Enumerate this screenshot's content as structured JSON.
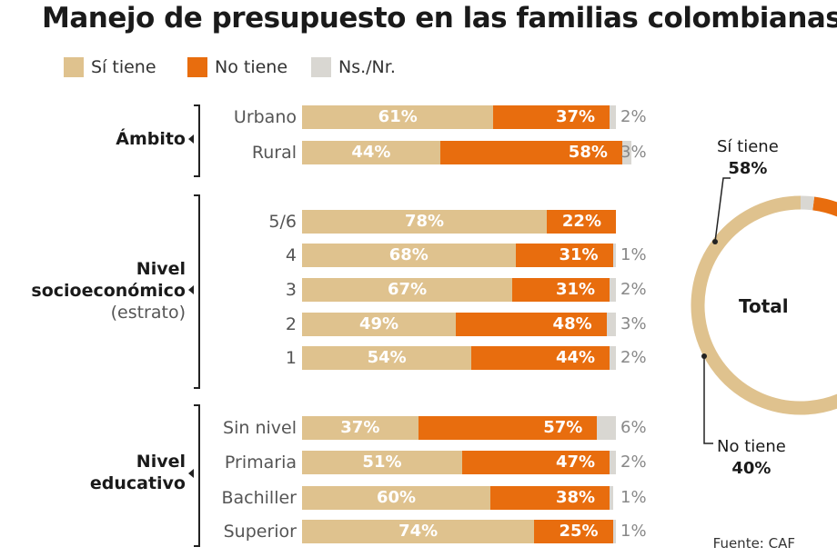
{
  "title": "Manejo de presupuesto en las familias colombianas",
  "colors": {
    "si": "#dfc28e",
    "no": "#e86d0e",
    "nsnr": "#d9d7d2"
  },
  "legend": [
    {
      "key": "si",
      "label": "Sí tiene"
    },
    {
      "key": "no",
      "label": "No tiene"
    },
    {
      "key": "nsnr",
      "label": "Ns./Nr."
    }
  ],
  "groups": {
    "ambito": {
      "label": "Ámbito",
      "sub": ""
    },
    "nivel_socio": {
      "label": "Nivel socioeconómico",
      "line1": "Nivel",
      "line2": "socioeconómico",
      "sub": "(estrato)"
    },
    "nivel_edu": {
      "label": "Nivel educativo",
      "line1": "Nivel",
      "line2": "educativo"
    }
  },
  "chart_data": [
    {
      "type": "bar",
      "orientation": "horizontal",
      "stacked": true,
      "title": "Manejo de presupuesto en las familias colombianas",
      "units": "%",
      "categories": [
        "Urbano",
        "Rural",
        "5/6",
        "4",
        "3",
        "2",
        "1",
        "Sin nivel",
        "Primaria",
        "Bachiller",
        "Superior"
      ],
      "category_groups": [
        "ambito",
        "ambito",
        "nivel_socio",
        "nivel_socio",
        "nivel_socio",
        "nivel_socio",
        "nivel_socio",
        "nivel_edu",
        "nivel_edu",
        "nivel_edu",
        "nivel_edu"
      ],
      "series": [
        {
          "name": "Sí tiene",
          "key": "si",
          "values": [
            61,
            44,
            78,
            68,
            67,
            49,
            54,
            37,
            51,
            60,
            74
          ],
          "labels": [
            "61%",
            "44%",
            "78%",
            "68%",
            "67%",
            "49%",
            "54%",
            "37%",
            "51%",
            "60%",
            "74%"
          ]
        },
        {
          "name": "No tiene",
          "key": "no",
          "values": [
            37,
            58,
            22,
            31,
            31,
            48,
            44,
            57,
            47,
            38,
            25
          ],
          "labels": [
            "37%",
            "58%",
            "22%",
            "31%",
            "31%",
            "48%",
            "44%",
            "57%",
            "47%",
            "38%",
            "25%"
          ]
        },
        {
          "name": "Ns./Nr.",
          "key": "nsnr",
          "values": [
            2,
            3,
            0,
            1,
            2,
            3,
            2,
            6,
            2,
            1,
            1
          ],
          "labels": [
            "2%",
            "3%",
            "",
            "1%",
            "2%",
            "3%",
            "2%",
            "6%",
            "2%",
            "1%",
            "1%"
          ]
        }
      ],
      "xlim": [
        0,
        100
      ]
    },
    {
      "type": "pie",
      "donut": true,
      "title": "Total",
      "slices": [
        {
          "name": "Sí tiene",
          "key": "si",
          "value": 58,
          "label": "58%"
        },
        {
          "name": "No tiene",
          "key": "no",
          "value": 40,
          "label": "40%"
        },
        {
          "name": "Ns./Nr.",
          "key": "nsnr",
          "value": 2,
          "label": ""
        }
      ]
    }
  ],
  "source": "Fuente: CAF"
}
